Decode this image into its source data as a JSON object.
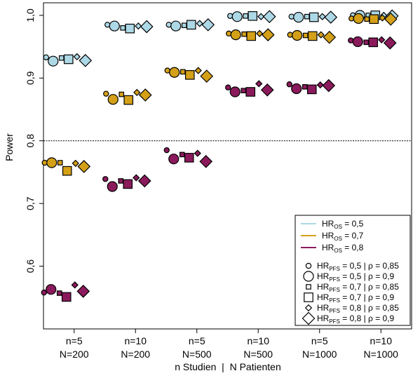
{
  "chart_data": {
    "type": "scatter",
    "ylabel": "Power",
    "xlabel": "n Studien  |  N Patienten",
    "ylim": [
      0.5,
      1.02
    ],
    "yticks": [
      "0,6",
      "0,7",
      "0,8",
      "0,9",
      "1,0"
    ],
    "ytick_values": [
      0.6,
      0.7,
      0.8,
      0.9,
      1.0
    ],
    "reference_line": 0.8,
    "grid": false,
    "categories": [
      {
        "line1": "n=5",
        "line2": "N=200"
      },
      {
        "line1": "n=10",
        "line2": "N=200"
      },
      {
        "line1": "n=5",
        "line2": "N=500"
      },
      {
        "line1": "n=10",
        "line2": "N=500"
      },
      {
        "line1": "n=5",
        "line2": "N=1000"
      },
      {
        "line1": "n=10",
        "line2": "N=1000"
      }
    ],
    "colors": {
      "os05": "#add8e6",
      "os07": "#d4a017",
      "os08": "#8b1a5c"
    },
    "series": [
      {
        "name": "HR_OS = 0,5",
        "color_key": "os05",
        "values": [
          [
            0.933,
            0.927,
            0.932,
            0.93,
            0.934,
            0.928
          ],
          [
            0.985,
            0.983,
            0.98,
            0.979,
            0.983,
            0.982
          ],
          [
            0.985,
            0.983,
            0.984,
            0.985,
            0.987,
            0.985
          ],
          [
            0.999,
            0.998,
            0.999,
            0.999,
            0.998,
            0.998
          ],
          [
            0.998,
            0.997,
            0.998,
            0.997,
            0.998,
            0.997
          ],
          [
            1.0,
            1.0,
            1.0,
            1.0,
            1.0,
            0.999
          ]
        ]
      },
      {
        "name": "HR_OS = 0,7",
        "color_key": "os07",
        "values": [
          [
            0.765,
            0.765,
            0.765,
            0.752,
            0.764,
            0.759
          ],
          [
            0.875,
            0.866,
            0.874,
            0.865,
            0.877,
            0.873
          ],
          [
            0.912,
            0.909,
            0.91,
            0.905,
            0.912,
            0.903
          ],
          [
            0.971,
            0.969,
            0.97,
            0.967,
            0.971,
            0.969
          ],
          [
            0.969,
            0.968,
            0.968,
            0.967,
            0.969,
            0.965
          ],
          [
            0.995,
            0.995,
            0.994,
            0.994,
            0.996,
            0.994
          ]
        ]
      },
      {
        "name": "HR_OS = 0,8",
        "color_key": "os08",
        "values": [
          [
            0.558,
            0.563,
            0.557,
            0.551,
            0.57,
            0.56
          ],
          [
            0.739,
            0.727,
            0.736,
            0.731,
            0.741,
            0.736
          ],
          [
            0.785,
            0.771,
            0.778,
            0.773,
            0.78,
            0.767
          ],
          [
            0.885,
            0.878,
            0.88,
            0.878,
            0.891,
            0.881
          ],
          [
            0.89,
            0.883,
            0.886,
            0.882,
            0.889,
            0.888
          ],
          [
            0.96,
            0.958,
            0.957,
            0.957,
            0.961,
            0.956
          ]
        ]
      }
    ],
    "markers": [
      {
        "shape": "circle",
        "size": "small"
      },
      {
        "shape": "circle",
        "size": "large"
      },
      {
        "shape": "square",
        "size": "small"
      },
      {
        "shape": "square",
        "size": "large"
      },
      {
        "shape": "diamond",
        "size": "small"
      },
      {
        "shape": "diamond",
        "size": "large"
      }
    ],
    "legend": {
      "placement": "bottom-right",
      "color_entries": [
        {
          "base": "HR",
          "sub": "OS",
          "rest": " = 0,5",
          "color_key": "os05"
        },
        {
          "base": "HR",
          "sub": "OS",
          "rest": " = 0,7",
          "color_key": "os07"
        },
        {
          "base": "HR",
          "sub": "OS",
          "rest": " = 0,8",
          "color_key": "os08"
        }
      ],
      "shape_entries": [
        {
          "base": "HR",
          "sub": "PFS",
          "rest": " = 0,5  | ρ = 0,85"
        },
        {
          "base": "HR",
          "sub": "PFS",
          "rest": " = 0,5  | ρ = 0,9"
        },
        {
          "base": "HR",
          "sub": "PFS",
          "rest": " = 0,7  | ρ = 0,85"
        },
        {
          "base": "HR",
          "sub": "PFS",
          "rest": " = 0,7  | ρ = 0,9"
        },
        {
          "base": "HR",
          "sub": "PFS",
          "rest": " = 0,8  | ρ = 0,85"
        },
        {
          "base": "HR",
          "sub": "PFS",
          "rest": " = 0,8  | ρ = 0,9"
        }
      ]
    }
  }
}
